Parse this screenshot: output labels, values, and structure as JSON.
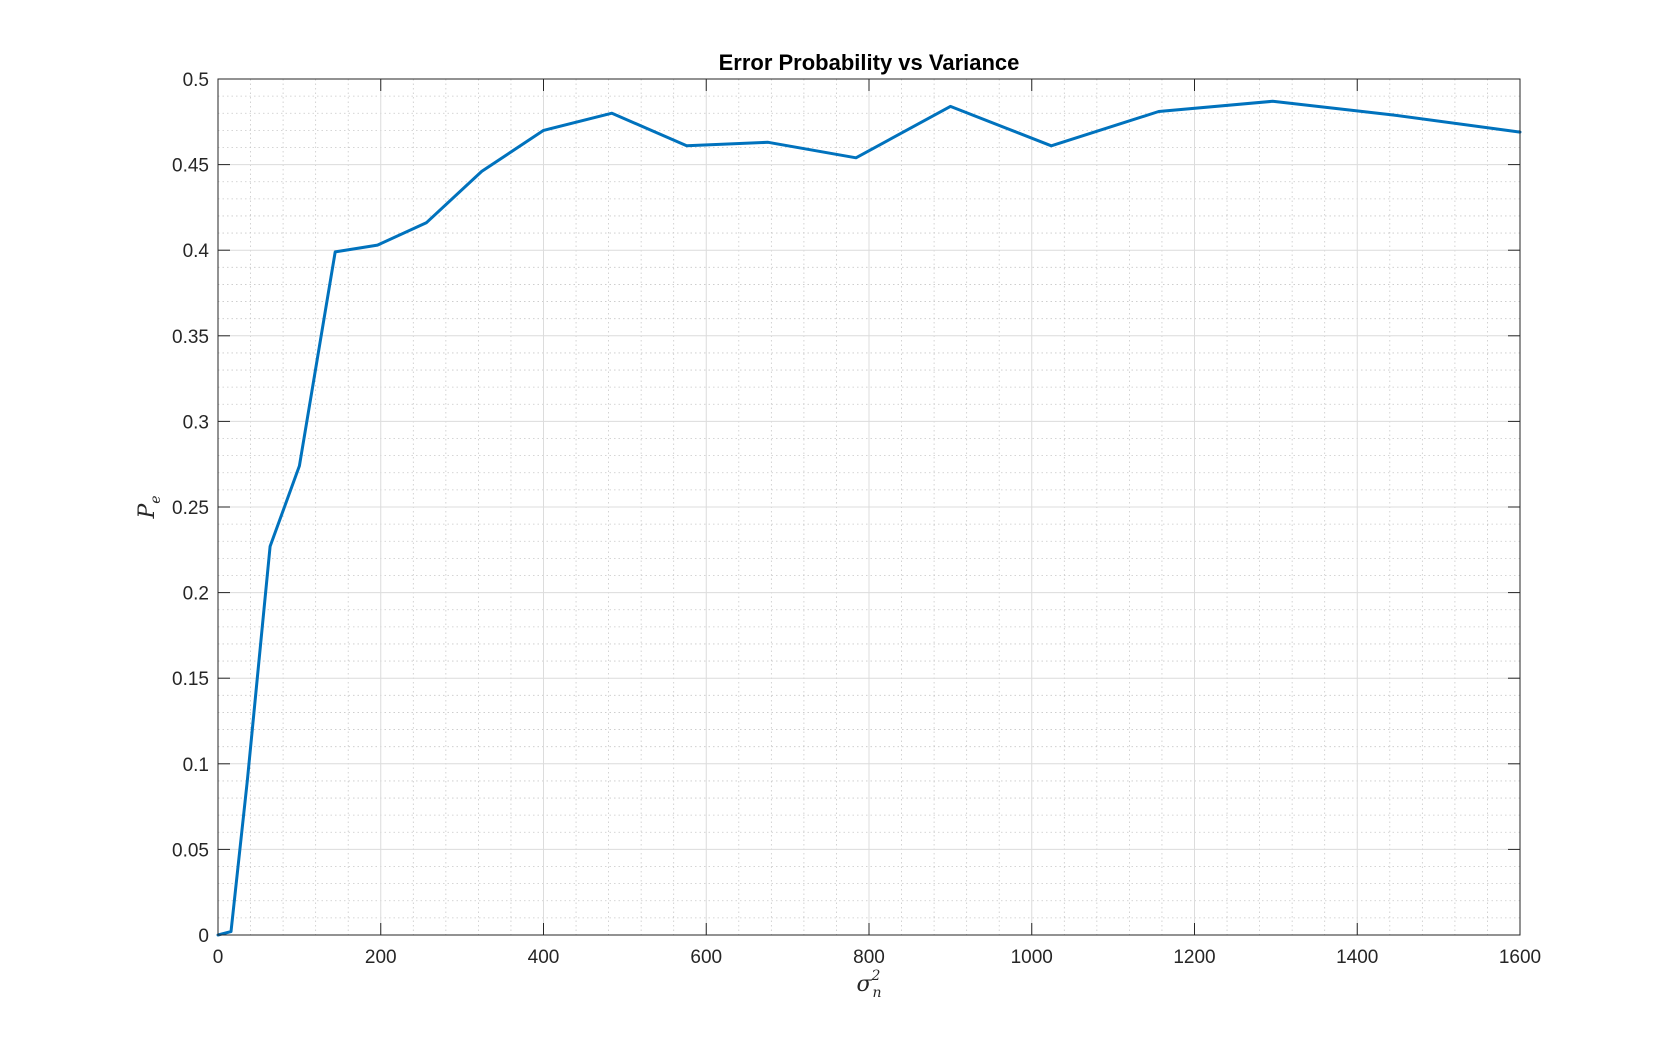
{
  "chart_data": {
    "type": "line",
    "title": "Error Probability vs Variance",
    "xlabel": {
      "base": "σ",
      "sub": "n",
      "sup": "2"
    },
    "ylabel": {
      "base": "P",
      "sub": "e"
    },
    "xlim": [
      0,
      1600
    ],
    "ylim": [
      0,
      0.5
    ],
    "xticks": [
      0,
      200,
      400,
      600,
      800,
      1000,
      1200,
      1400,
      1600
    ],
    "xtick_labels": [
      "0",
      "200",
      "400",
      "600",
      "800",
      "1000",
      "1200",
      "1400",
      "1600"
    ],
    "yticks": [
      0,
      0.05,
      0.1,
      0.15,
      0.2,
      0.25,
      0.3,
      0.35,
      0.4,
      0.45,
      0.5
    ],
    "ytick_labels": [
      "0",
      "0.05",
      "0.1",
      "0.15",
      "0.2",
      "0.25",
      "0.3",
      "0.35",
      "0.4",
      "0.45",
      "0.5"
    ],
    "grid": true,
    "minor_grid": true,
    "series": [
      {
        "color": "#0072BD",
        "x": [
          0,
          16,
          36,
          64,
          100,
          144,
          196,
          256,
          324,
          400,
          484,
          576,
          676,
          784,
          900,
          1024,
          1156,
          1296,
          1444,
          1600
        ],
        "y": [
          0,
          0.002,
          0.09,
          0.227,
          0.274,
          0.399,
          0.403,
          0.416,
          0.446,
          0.47,
          0.48,
          0.461,
          0.463,
          0.454,
          0.484,
          0.461,
          0.481,
          0.487,
          0.479,
          0.469
        ]
      }
    ]
  }
}
